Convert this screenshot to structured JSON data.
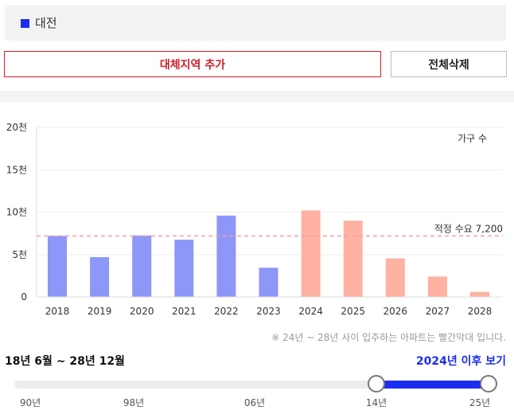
{
  "region": {
    "name": "대전",
    "color": "#1b2ef0"
  },
  "buttons": {
    "add_label": "대체지역 추가",
    "delete_label": "전체삭제"
  },
  "chart_data": {
    "type": "bar",
    "unit_label": "가구 수",
    "categories": [
      "2018",
      "2019",
      "2020",
      "2021",
      "2022",
      "2023",
      "2024",
      "2025",
      "2026",
      "2027",
      "2028"
    ],
    "values": [
      7200,
      4700,
      7250,
      6750,
      9600,
      3450,
      10200,
      9000,
      4550,
      2400,
      600
    ],
    "bar_colors": [
      "#8c97f7",
      "#8c97f7",
      "#8c97f7",
      "#8c97f7",
      "#8c97f7",
      "#8c97f7",
      "#ffb1a2",
      "#ffb1a2",
      "#ffb1a2",
      "#ffb1a2",
      "#ffb1a2"
    ],
    "ylim": [
      0,
      20000
    ],
    "yticks": [
      0,
      5000,
      10000,
      15000,
      20000
    ],
    "ytick_labels": [
      "0",
      "5천",
      "10천",
      "15천",
      "20천"
    ],
    "reference_line": {
      "value": 7200,
      "label": "적정 수요 7,200",
      "color": "#f5a0a0"
    },
    "grid": true
  },
  "note": "※ 24년 ~ 28년 사이 입주하는 아파트는 빨간막대 입니다.",
  "period": {
    "label": "18년 6월 ~ 28년 12월",
    "since_link": "2024년 이후 보기"
  },
  "slider": {
    "tick_labels": [
      "90년",
      "98년",
      "06년",
      "14년",
      "25년"
    ],
    "range_color": "#1b2ef0"
  }
}
